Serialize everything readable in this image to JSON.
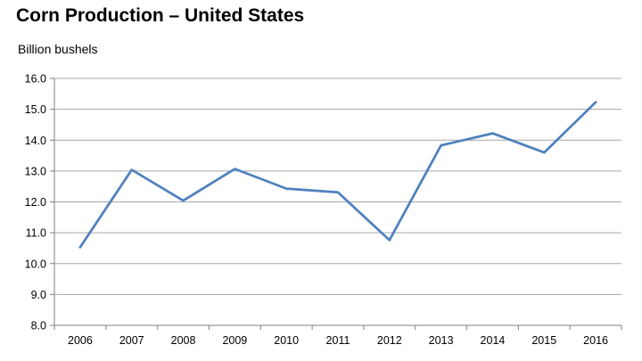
{
  "title": "Corn Production – United States",
  "ylabel": "Billion bushels",
  "colors": {
    "line": "#4f81bd",
    "grid": "#a6a6a6",
    "axis": "#7f7f7f"
  },
  "chart_data": {
    "type": "line",
    "title": "Corn Production – United States",
    "xlabel": "",
    "ylabel": "Billion bushels",
    "categories": [
      "2006",
      "2007",
      "2008",
      "2009",
      "2010",
      "2011",
      "2012",
      "2013",
      "2014",
      "2015",
      "2016"
    ],
    "series": [
      {
        "values": [
          10.53,
          13.04,
          12.04,
          13.07,
          12.43,
          12.31,
          10.76,
          13.83,
          14.22,
          13.6,
          15.23
        ]
      }
    ],
    "ylim": [
      8.0,
      16.0
    ],
    "yticks": [
      "8.0",
      "9.0",
      "10.0",
      "11.0",
      "12.0",
      "13.0",
      "14.0",
      "15.0",
      "16.0"
    ],
    "grid": true,
    "legend": "none"
  }
}
